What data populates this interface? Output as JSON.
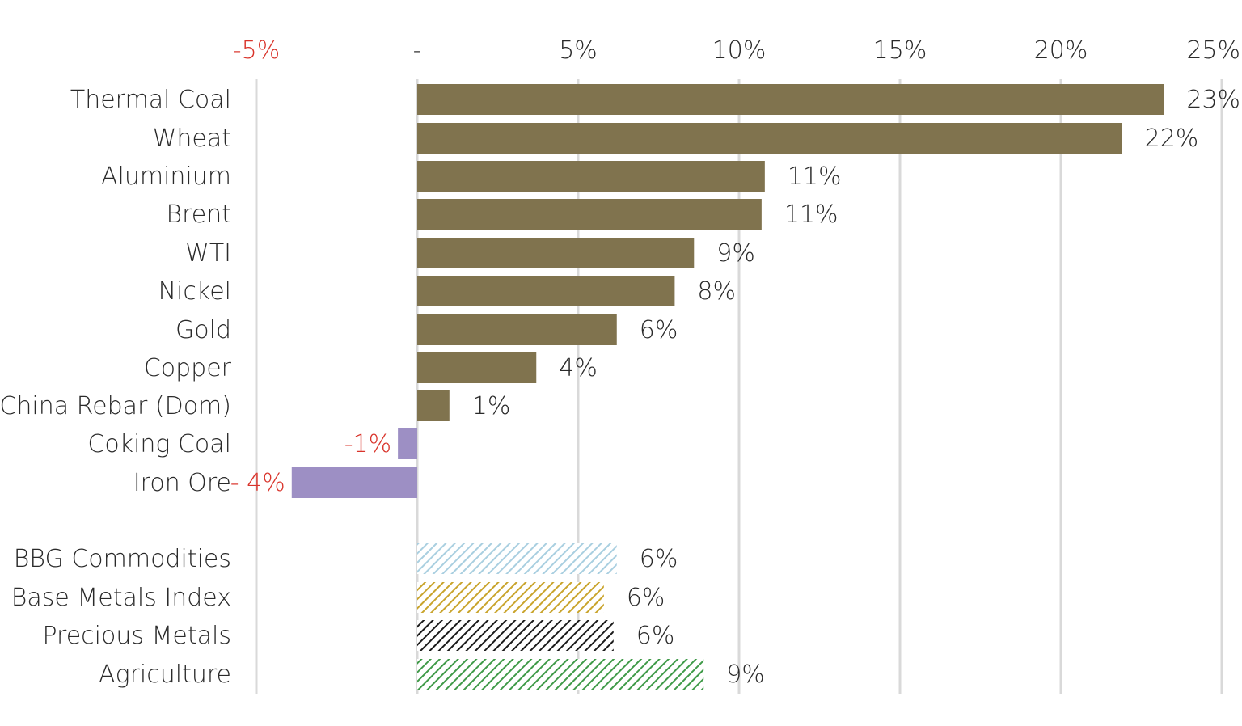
{
  "chart_data": {
    "type": "bar",
    "orientation": "horizontal",
    "title": "",
    "xlabel": "",
    "ylabel": "",
    "xlim": [
      -5,
      25
    ],
    "ticks": [
      {
        "value": -5,
        "label": "-5%"
      },
      {
        "value": 0,
        "label": "-"
      },
      {
        "value": 5,
        "label": "5%"
      },
      {
        "value": 10,
        "label": "10%"
      },
      {
        "value": 15,
        "label": "15%"
      },
      {
        "value": 20,
        "label": "20%"
      },
      {
        "value": 25,
        "label": "25%"
      }
    ],
    "grid": true,
    "legend": "none",
    "colors": {
      "positive": "#80734e",
      "negative": "#9d8fc4",
      "negative_text": "#d9342b",
      "text": "#2a2a2a",
      "grid": "#d9d9d9"
    },
    "bars": [
      {
        "label": "Thermal Coal",
        "value": 23.2,
        "value_label": "23%"
      },
      {
        "label": "Wheat",
        "value": 21.9,
        "value_label": "22%"
      },
      {
        "label": "Aluminium",
        "value": 10.8,
        "value_label": "11%"
      },
      {
        "label": "Brent",
        "value": 10.7,
        "value_label": "11%"
      },
      {
        "label": "WTI",
        "value": 8.6,
        "value_label": "9%"
      },
      {
        "label": "Nickel",
        "value": 8.0,
        "value_label": "8%"
      },
      {
        "label": "Gold",
        "value": 6.2,
        "value_label": "6%"
      },
      {
        "label": "Copper",
        "value": 3.7,
        "value_label": "4%"
      },
      {
        "label": "China Rebar (Dom)",
        "value": 1.0,
        "value_label": "1%"
      },
      {
        "label": "Coking Coal",
        "value": -0.6,
        "value_label": "-1%"
      },
      {
        "label": "Iron Ore",
        "value": -3.9,
        "value_label": "- 4%"
      }
    ],
    "index_bars": [
      {
        "label": "BBG Commodities",
        "value": 6.2,
        "value_label": "6%",
        "pattern_color": "#a9cfe0"
      },
      {
        "label": "Base Metals Index",
        "value": 5.8,
        "value_label": "6%",
        "pattern_color": "#c9a42c"
      },
      {
        "label": "Precious Metals",
        "value": 6.1,
        "value_label": "6%",
        "pattern_color": "#1a1a1a"
      },
      {
        "label": "Agriculture",
        "value": 8.9,
        "value_label": "9%",
        "pattern_color": "#3f9a48"
      }
    ]
  }
}
